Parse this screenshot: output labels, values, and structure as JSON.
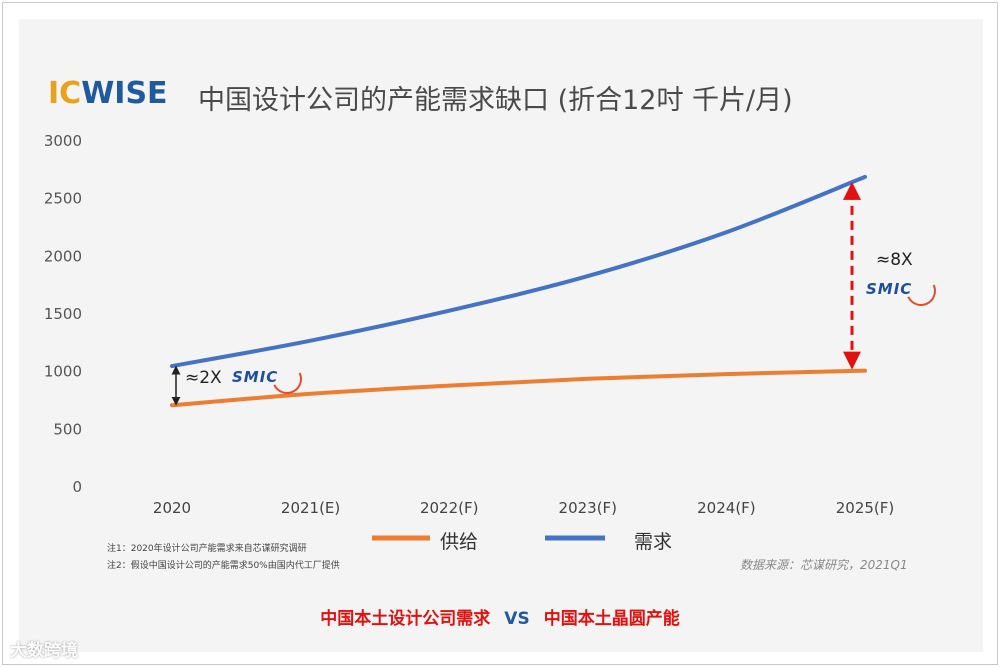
{
  "header": {
    "logo_ic": "IC",
    "logo_wise": "WISE",
    "title": "中国设计公司的产能需求缺口 (折合12吋 千片/月)"
  },
  "chart_data": {
    "type": "line",
    "categories": [
      "2020",
      "2021(E)",
      "2022(F)",
      "2023(F)",
      "2024(F)",
      "2025(F)"
    ],
    "ylim": [
      0,
      3000
    ],
    "yticks": [
      0,
      500,
      1000,
      1500,
      2000,
      2500,
      3000
    ],
    "series": [
      {
        "name": "供给",
        "color": "#ed7d31",
        "values": [
          700,
          800,
          870,
          930,
          970,
          1000
        ]
      },
      {
        "name": "需求",
        "color": "#4472c4",
        "values": [
          1040,
          1260,
          1520,
          1820,
          2200,
          2680
        ]
      }
    ],
    "legend_position": "bottom",
    "grid": false,
    "annotations": [
      {
        "text": "≈2X",
        "category": "2020",
        "brand": "SMIC"
      },
      {
        "text": "≈8X",
        "category": "2025(F)",
        "brand": "SMIC"
      }
    ]
  },
  "notes": [
    "注1：2020年设计公司产能需求来自芯谋研究调研",
    "注2：假设中国设计公司的产能需求50%由国内代工厂提供"
  ],
  "source": "数据来源：芯谋研究，2021Q1",
  "caption": {
    "left": "中国本土设计公司需求",
    "vs": "VS",
    "right": "中国本土晶圆产能"
  },
  "watermark": "大数跨境"
}
